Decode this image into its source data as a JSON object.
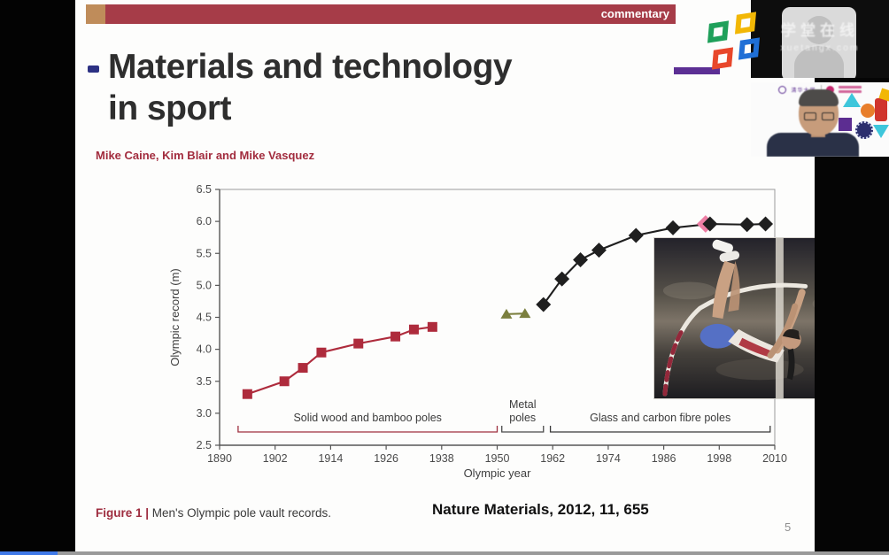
{
  "app": {
    "type": "lecture-video-player"
  },
  "player": {
    "progress_percent": 6.5
  },
  "slide": {
    "tag": "commentary",
    "title": [
      "Materials and technology",
      "in sport"
    ],
    "authors": "Mike Caine, Kim Blair and Mike Vasquez",
    "figure_caption_label": "Figure 1 |",
    "figure_caption_text": " Men's Olympic pole vault records.",
    "reference": "Nature Materials, 2012, 11, 655",
    "page_number": "5"
  },
  "video_panel": {
    "watermark": {
      "line1": "学堂在线",
      "line2": "xuetangx.com"
    },
    "presenter_banner_logo": "清华大学"
  },
  "chart_data": {
    "type": "line",
    "title": "",
    "xlabel": "Olympic year",
    "ylabel": "Olympic record (m)",
    "xlim": [
      1890,
      2010
    ],
    "ylim": [
      2.5,
      6.5
    ],
    "x_ticks": [
      1890,
      1902,
      1914,
      1926,
      1938,
      1950,
      1962,
      1974,
      1986,
      1998,
      2010
    ],
    "y_ticks": [
      2.5,
      3.0,
      3.5,
      4.0,
      4.5,
      5.0,
      5.5,
      6.0,
      6.5
    ],
    "grid": false,
    "legend_position": "none",
    "series": [
      {
        "name": "Solid wood and bamboo poles",
        "marker": "square",
        "color": "#ae2b3c",
        "points": [
          [
            1896,
            3.3
          ],
          [
            1904,
            3.5
          ],
          [
            1908,
            3.71
          ],
          [
            1912,
            3.95
          ],
          [
            1920,
            4.09
          ],
          [
            1928,
            4.2
          ],
          [
            1932,
            4.31
          ],
          [
            1936,
            4.35
          ]
        ]
      },
      {
        "name": "Metal poles",
        "marker": "triangle",
        "color": "#7b7f3e",
        "points": [
          [
            1952,
            4.55
          ],
          [
            1956,
            4.56
          ]
        ]
      },
      {
        "name": "Glass and carbon fibre poles",
        "marker": "diamond",
        "color": "#1f1f1f",
        "points": [
          [
            1960,
            4.7
          ],
          [
            1964,
            5.1
          ],
          [
            1968,
            5.4
          ],
          [
            1972,
            5.55
          ],
          [
            1980,
            5.78
          ],
          [
            1988,
            5.9
          ],
          [
            1996,
            5.96
          ],
          [
            2004,
            5.95
          ],
          [
            2008,
            5.96
          ]
        ],
        "highlight": {
          "x": 1996,
          "y": 5.96,
          "color": "#ee7fa5"
        }
      }
    ],
    "annotations": [
      {
        "label_lines": [
          "Solid wood and bamboo poles"
        ],
        "x_from": 1894,
        "x_to": 1950,
        "color": "#9e2f3e"
      },
      {
        "label_lines": [
          "Metal",
          "poles"
        ],
        "x_from": 1951,
        "x_to": 1960,
        "color": "#4a4a4a"
      },
      {
        "label_lines": [
          "Glass and carbon fibre poles"
        ],
        "x_from": 1961.5,
        "x_to": 2009,
        "color": "#3a3a3a"
      }
    ]
  }
}
